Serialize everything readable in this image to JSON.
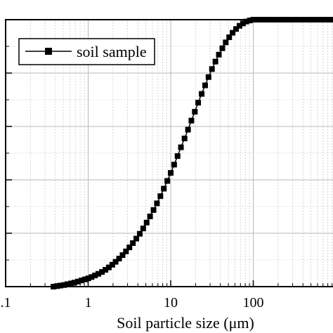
{
  "chart_data": {
    "type": "scatter",
    "title": "",
    "xlabel": "Soil particle size (μm)",
    "ylabel": "",
    "xscale": "log",
    "xlim": [
      0.1,
      1000
    ],
    "ylim": [
      0,
      100
    ],
    "x_ticks": [
      0.1,
      1,
      10,
      100
    ],
    "x_tick_labels": [
      ".1",
      "1",
      "10",
      "100"
    ],
    "grid": true,
    "legend_position": "top-left",
    "series": [
      {
        "name": "soil sample",
        "color": "#000000",
        "marker": "square",
        "x": [
          0.38,
          0.42,
          0.46,
          0.51,
          0.56,
          0.62,
          0.68,
          0.75,
          0.83,
          0.91,
          1.0,
          1.1,
          1.21,
          1.33,
          1.47,
          1.62,
          1.78,
          1.96,
          2.15,
          2.37,
          2.61,
          2.87,
          3.16,
          3.48,
          3.83,
          4.22,
          4.64,
          5.11,
          5.62,
          6.19,
          6.81,
          7.5,
          8.25,
          9.09,
          10.0,
          11.0,
          12.1,
          13.3,
          14.7,
          16.2,
          17.8,
          19.6,
          21.5,
          23.7,
          26.1,
          28.7,
          31.6,
          34.8,
          38.3,
          42.2,
          46.4,
          51.1,
          56.2,
          61.9,
          68.1,
          75.0,
          82.5,
          90.9,
          100,
          110,
          121,
          133,
          147,
          162,
          178,
          196,
          215,
          237,
          261,
          287,
          316,
          348,
          383,
          422,
          464,
          511,
          562,
          619,
          681,
          750,
          825,
          909,
          1000
        ],
        "y": [
          0.0,
          0.2,
          0.4,
          0.6,
          0.9,
          1.2,
          1.5,
          1.9,
          2.3,
          2.7,
          3.1,
          3.6,
          4.2,
          4.8,
          5.5,
          6.3,
          7.2,
          8.2,
          9.3,
          10.5,
          11.8,
          13.2,
          14.7,
          16.3,
          18.0,
          19.8,
          21.8,
          24.0,
          26.3,
          28.7,
          31.2,
          33.9,
          36.7,
          39.6,
          42.6,
          45.7,
          48.9,
          52.2,
          55.5,
          58.8,
          62.2,
          65.5,
          68.9,
          72.2,
          75.4,
          78.5,
          81.5,
          84.3,
          86.9,
          89.3,
          91.5,
          93.4,
          95.1,
          96.5,
          97.7,
          98.6,
          99.3,
          99.7,
          100,
          100,
          100,
          100,
          100,
          100,
          100,
          100,
          100,
          100,
          100,
          100,
          100,
          100,
          100,
          100,
          100,
          100,
          100,
          100,
          100,
          100,
          100,
          100,
          100
        ]
      }
    ]
  }
}
